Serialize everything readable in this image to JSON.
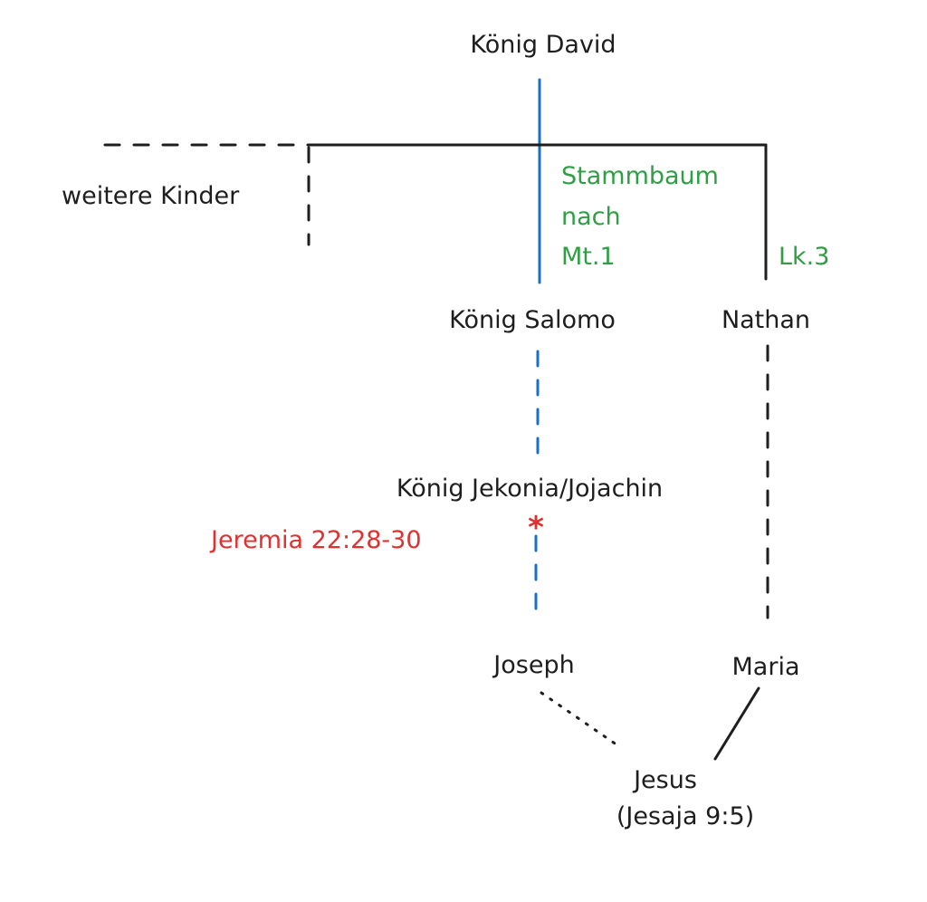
{
  "colors": {
    "text": "#1e1e1e",
    "matthew_line": "#1971c2",
    "annotation_green": "#2f9e44",
    "annotation_red": "#e03131"
  },
  "nodes": {
    "david": "König David",
    "other_children": "weitere Kinder",
    "salomo": "König Salomo",
    "nathan": "Nathan",
    "jekonia": "König Jekonia/Jojachin",
    "joseph": "Joseph",
    "maria": "Maria",
    "jesus": "Jesus",
    "jesus_ref": "(Jesaja 9:5)"
  },
  "annotations": {
    "matthew_line1": "Stammbaum",
    "matthew_line2": "nach",
    "matthew_line3": "Mt.1",
    "luke": "Lk.3",
    "jeremia": "Jeremia 22:28-30",
    "asterisk": "*"
  }
}
